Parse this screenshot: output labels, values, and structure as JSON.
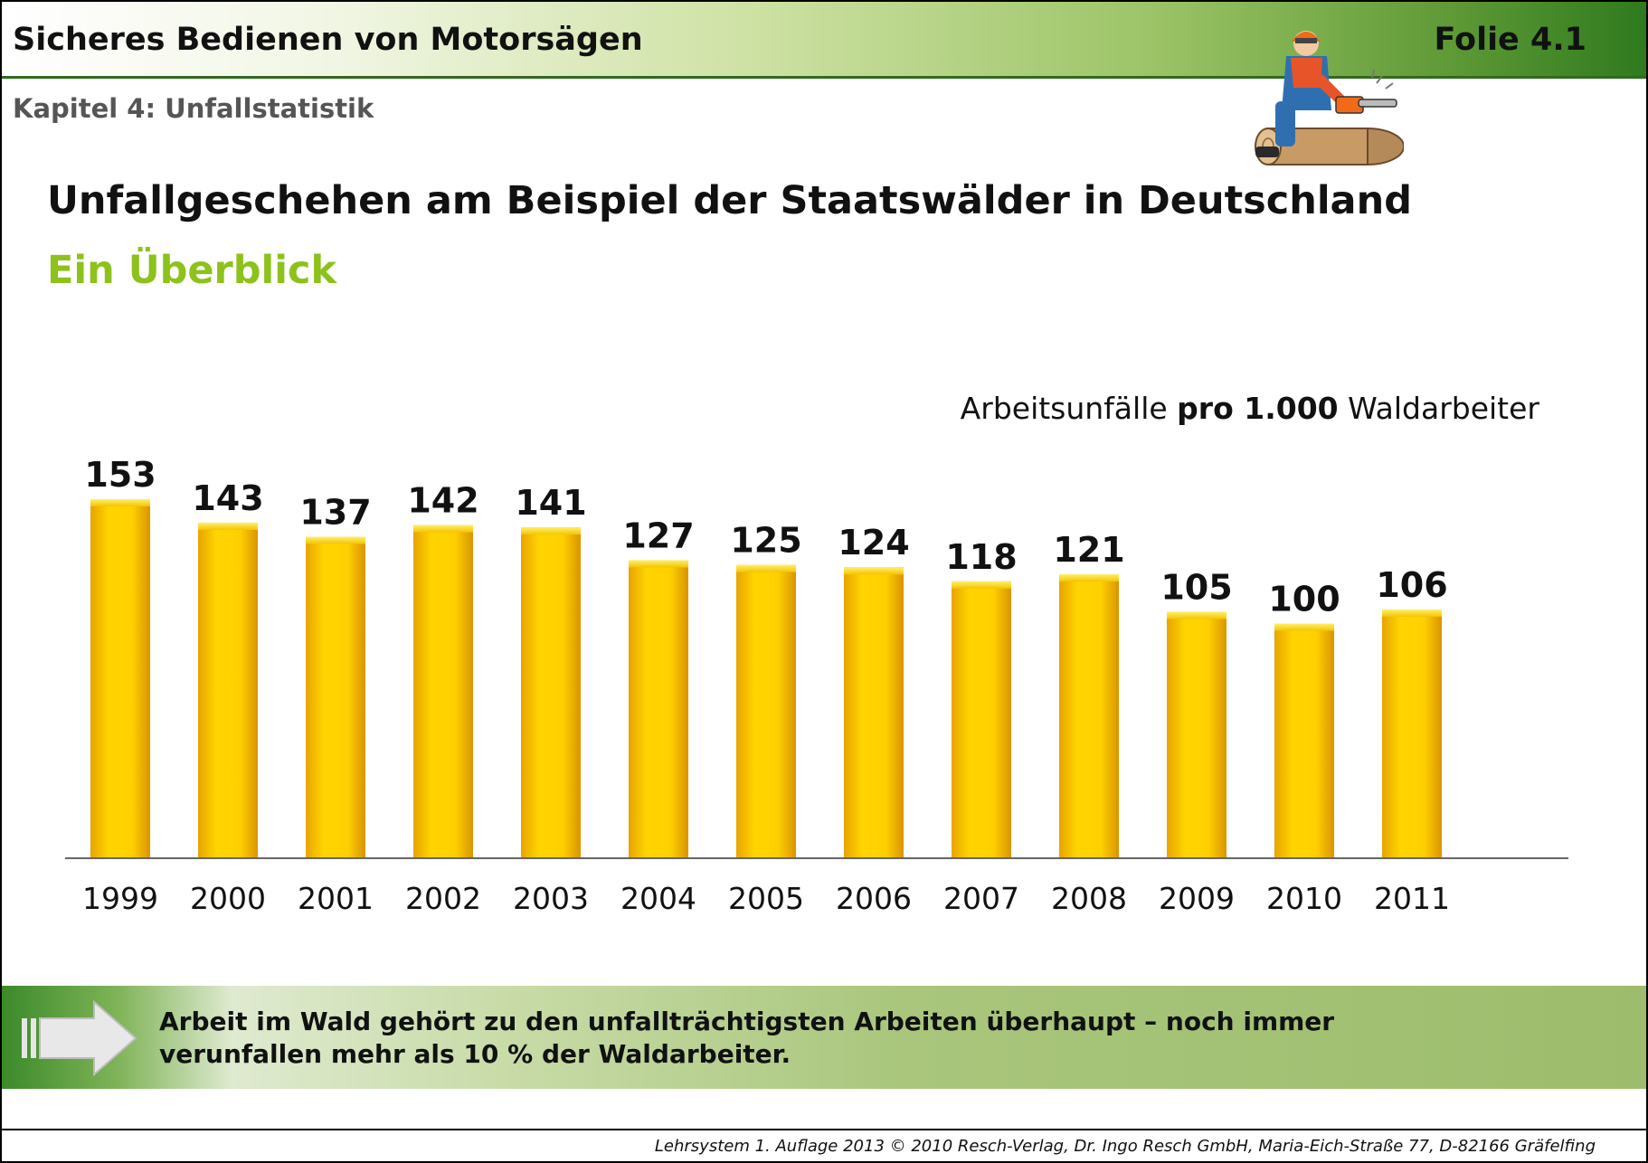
{
  "header": {
    "title": "Sicheres Bedienen von Motorsägen",
    "folie": "Folie 4.1"
  },
  "chapter": "Kapitel 4: Unfallstatistik",
  "main_title": "Unfallgeschehen am Beispiel der Staatswälder in Deutschland",
  "sub_title": "Ein Überblick",
  "unit_label": {
    "prefix": "Arbeitsunfälle ",
    "bold": "pro 1.000",
    "suffix": " Waldarbeiter"
  },
  "banner": {
    "text_line1": "Arbeit im Wald gehört zu den unfallträchtigsten Arbeiten überhaupt – noch immer",
    "text_line2": "verunfallen mehr als 10 % der Waldarbeiter."
  },
  "footer": "Lehrsystem 1. Auflage 2013 © 2010 Resch-Verlag, Dr. Ingo Resch GmbH, Maria-Eich-Straße 77, D-82166 Gräfelfing",
  "icons": {
    "figure": "chainsaw-worker-icon",
    "arrow": "right-arrow-icon"
  },
  "colors": {
    "bar": "#f5c400",
    "subtitle": "#8cc21b",
    "header_green": "#2f7a1e"
  },
  "chart_data": {
    "type": "bar",
    "title": "Arbeitsunfälle pro 1.000 Waldarbeiter",
    "categories": [
      "1999",
      "2000",
      "2001",
      "2002",
      "2003",
      "2004",
      "2005",
      "2006",
      "2007",
      "2008",
      "2009",
      "2010",
      "2011"
    ],
    "values": [
      153,
      143,
      137,
      142,
      141,
      127,
      125,
      124,
      118,
      121,
      105,
      100,
      106
    ],
    "ylim": [
      0,
      153
    ],
    "grid": false,
    "legend": "none",
    "data_labels": true
  }
}
